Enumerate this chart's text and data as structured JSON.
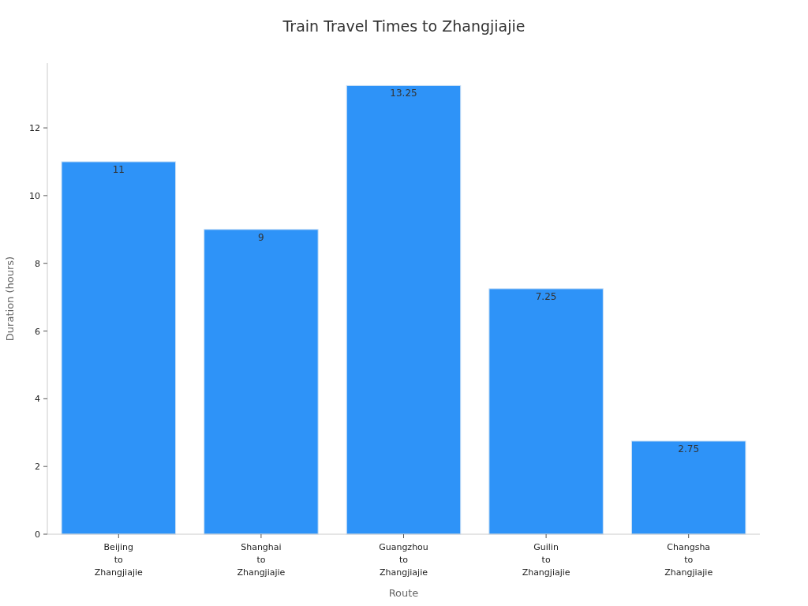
{
  "chart_data": {
    "type": "bar",
    "title": "Train Travel Times to Zhangjiajie",
    "xlabel": "Route",
    "ylabel": "Duration (hours)",
    "categories": [
      "Beijing to Zhangjiajie",
      "Shanghai to Zhangjiajie",
      "Guangzhou to Zhangjiajie",
      "Guilin to Zhangjiajie",
      "Changsha to Zhangjiajie"
    ],
    "values": [
      11,
      9,
      13.25,
      7.25,
      2.75
    ],
    "color": "#2e93f8",
    "ylim": [
      0,
      13.9125
    ],
    "yticks": [
      0,
      2,
      4,
      6,
      8,
      10,
      12
    ],
    "data_labels": true,
    "grid": false
  }
}
